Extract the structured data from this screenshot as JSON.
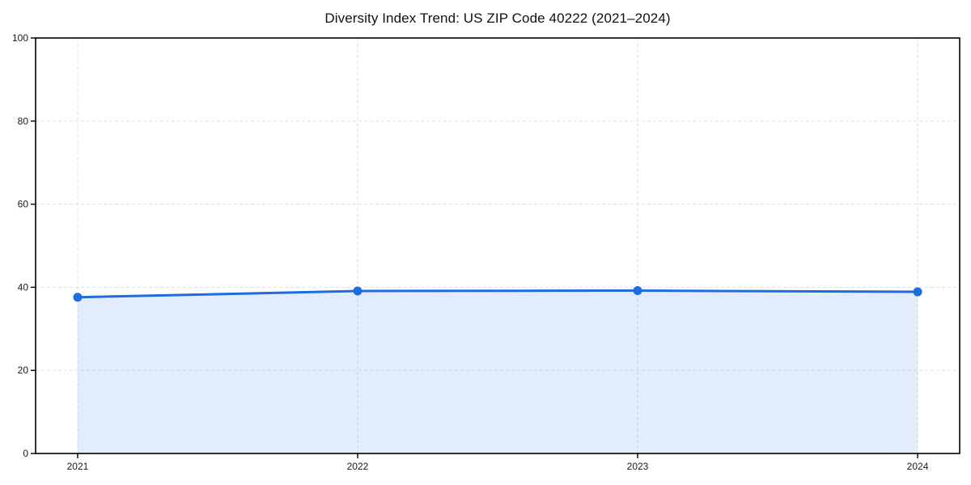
{
  "page": {
    "background": "#ffffff"
  },
  "chart_data": {
    "type": "area",
    "title": "Diversity Index Trend: US ZIP Code 40222 (2021–2024)",
    "categories": [
      "2021",
      "2022",
      "2023",
      "2024"
    ],
    "series": [
      {
        "name": "Diversity Index",
        "values": [
          37.6,
          39.1,
          39.2,
          38.9
        ]
      }
    ],
    "xlabel": "",
    "ylabel": "",
    "ylim": [
      0,
      100
    ],
    "yticks": [
      0,
      20,
      40,
      60,
      80,
      100
    ],
    "grid": "dashed",
    "legend": "none",
    "marker": "circle",
    "colors": {
      "line": "#1d6ce0",
      "fill": "#1d6ce0",
      "fill_opacity": 0.13,
      "grid": "#dfdfdf",
      "spine": "#000000",
      "text": "#1a1a1a"
    }
  }
}
